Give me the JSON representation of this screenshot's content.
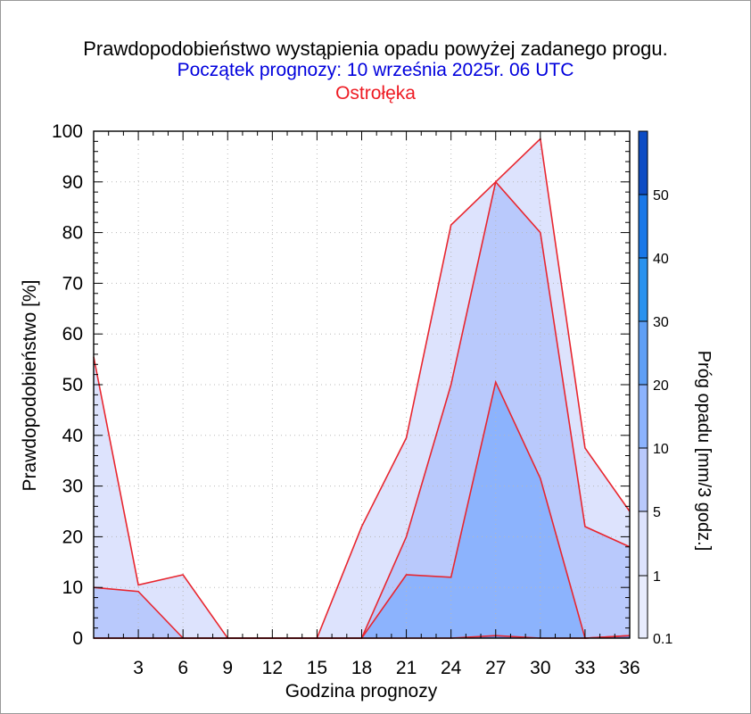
{
  "header": {
    "title": "Prawdopodobieństwo wystąpienia opadu powyżej zadanego progu.",
    "subtitle": "Początek prognozy: 10 września 2025r. 06 UTC",
    "location": "Ostrołęka",
    "subtitle_color": "#0000dd",
    "location_color": "#ee1c24"
  },
  "chart_data": {
    "type": "area",
    "title": "Prawdopodobieństwo wystąpienia opadu powyżej zadanego progu.",
    "xlabel": "Godzina prognozy",
    "ylabel": "Prawdopodobieństwo [%]",
    "colorbar_label": "Próg opadu [mm/3 godz.]",
    "xlim": [
      0,
      36
    ],
    "ylim": [
      0,
      100
    ],
    "x_ticks": [
      3,
      6,
      9,
      12,
      15,
      18,
      21,
      24,
      27,
      30,
      33,
      36
    ],
    "y_ticks": [
      0,
      10,
      20,
      30,
      40,
      50,
      60,
      70,
      80,
      90,
      100
    ],
    "grid": true,
    "x": [
      0,
      3,
      6,
      9,
      12,
      15,
      18,
      21,
      24,
      27,
      30,
      33,
      36
    ],
    "series": [
      {
        "name": "0.1",
        "color": "#dde3fd",
        "values": [
          55.5,
          10.5,
          12.5,
          0,
          0,
          0,
          22,
          39.5,
          81.5,
          90,
          98.5,
          37.5,
          25
        ]
      },
      {
        "name": "1",
        "color": "#b9c9fc",
        "values": [
          10,
          9.2,
          0,
          0,
          0,
          0,
          0,
          20,
          50,
          90,
          80,
          22,
          18
        ]
      },
      {
        "name": "5",
        "color": "#8cb3fd",
        "values": [
          0,
          0,
          0,
          0,
          0,
          0,
          0,
          12.5,
          12,
          50.5,
          31.5,
          0,
          0.5
        ]
      },
      {
        "name": "10",
        "color": "#5f97f5",
        "values": [
          0,
          0,
          0,
          0,
          0,
          0,
          0,
          0,
          0,
          0.5,
          0,
          0,
          0.5
        ]
      }
    ],
    "colorbar": {
      "labels": [
        "0.1",
        "1",
        "5",
        "10",
        "20",
        "30",
        "40",
        "50"
      ],
      "colors": [
        "#e8ecfd",
        "#dde3fd",
        "#b9c9fc",
        "#8cb3fd",
        "#5f9ff5",
        "#2a92ee",
        "#1a78e8",
        "#1464d6",
        "#0d4cc4",
        "#0a36a8"
      ]
    },
    "outline_color": "#e8262f"
  }
}
